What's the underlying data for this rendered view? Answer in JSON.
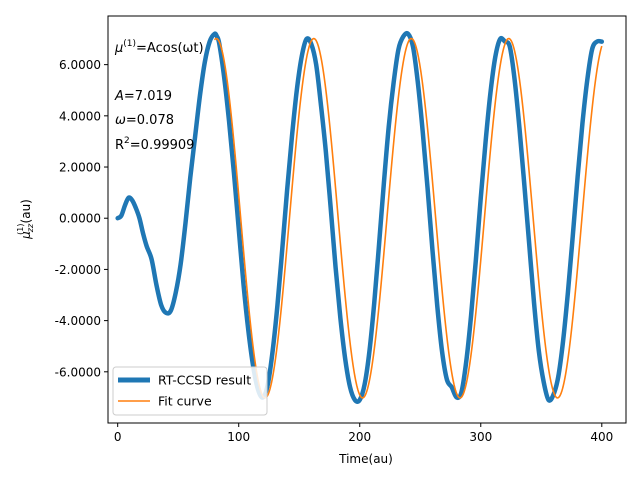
{
  "chart_data": {
    "type": "line",
    "xlabel": "Time(au)",
    "ylabel_main": "μ",
    "ylabel_sub": "zz",
    "ylabel_sup": "(1)",
    "ylabel_unit": "(au)",
    "xlim": [
      -8,
      420
    ],
    "ylim": [
      -8.0,
      7.9
    ],
    "xticks": [
      0,
      100,
      200,
      300,
      400
    ],
    "xtick_labels": [
      "0",
      "100",
      "200",
      "300",
      "400"
    ],
    "yticks": [
      -6,
      -4,
      -2,
      0,
      2,
      4,
      6
    ],
    "ytick_labels": [
      "-6.0000",
      "-4.0000",
      "-2.0000",
      "0.0000",
      "2.0000",
      "4.0000",
      "6.0000"
    ],
    "annotations": {
      "formula_prefix": "μ",
      "formula_sup": "(1)",
      "formula_body": "=Acos(ωt)",
      "amp_label": "A",
      "amp_value": "=7.019",
      "omega_label": "ω",
      "omega_value": "=0.078",
      "r2_label": "R",
      "r2_sup": "2",
      "r2_value": "=0.99909"
    },
    "legend_placement": "lower-left",
    "series": [
      {
        "name": "RT-CCSD result",
        "color": "#1f77b4",
        "x": [
          0,
          3,
          6,
          9,
          12,
          15,
          18,
          21,
          24,
          28,
          32,
          36,
          40,
          44,
          48,
          52,
          56,
          60,
          64,
          68,
          72,
          76,
          80,
          82,
          84,
          88,
          92,
          96,
          100,
          104,
          108,
          112,
          116,
          120,
          124,
          128,
          132,
          136,
          140,
          144,
          148,
          152,
          156,
          160,
          164,
          168,
          172,
          176,
          180,
          184,
          188,
          192,
          196,
          200,
          204,
          208,
          212,
          216,
          220,
          224,
          228,
          232,
          236,
          240,
          244,
          248,
          252,
          256,
          260,
          264,
          268,
          272,
          276,
          280,
          284,
          288,
          292,
          296,
          300,
          304,
          308,
          312,
          316,
          320,
          324,
          328,
          332,
          336,
          340,
          344,
          348,
          352,
          356,
          360,
          364,
          368,
          372,
          376,
          380,
          384,
          388,
          392,
          396,
          400
        ],
        "y": [
          0.0,
          0.1,
          0.5,
          0.8,
          0.7,
          0.4,
          0.0,
          -0.6,
          -1.1,
          -1.6,
          -2.6,
          -3.4,
          -3.7,
          -3.6,
          -2.9,
          -1.8,
          -0.2,
          1.6,
          3.2,
          4.8,
          6.1,
          6.9,
          7.2,
          7.1,
          6.8,
          5.5,
          3.8,
          1.8,
          -0.4,
          -2.6,
          -4.4,
          -5.8,
          -6.7,
          -7.0,
          -6.5,
          -5.2,
          -3.4,
          -1.2,
          1.1,
          3.2,
          5.0,
          6.3,
          7.0,
          6.8,
          6.0,
          4.4,
          2.6,
          0.4,
          -1.9,
          -3.9,
          -5.5,
          -6.6,
          -7.1,
          -7.1,
          -6.5,
          -5.2,
          -3.3,
          -1.0,
          1.4,
          3.6,
          5.3,
          6.6,
          7.1,
          7.2,
          6.7,
          5.3,
          3.4,
          1.2,
          -1.2,
          -3.4,
          -5.2,
          -6.3,
          -6.6,
          -7.0,
          -6.8,
          -5.6,
          -3.8,
          -1.6,
          0.8,
          3.0,
          4.9,
          6.3,
          7.0,
          6.9,
          6.7,
          5.4,
          3.5,
          1.3,
          -1.0,
          -3.3,
          -5.2,
          -6.4,
          -7.1,
          -6.9,
          -6.2,
          -4.8,
          -2.9,
          -0.7,
          1.6,
          3.7,
          5.4,
          6.6,
          6.9,
          6.9
        ]
      },
      {
        "name": "Fit curve",
        "color": "#ff7f0e",
        "func": "A*cos(omega*(t-phase))",
        "amplitude": 7.019,
        "omega": 0.078,
        "phase": 81.5,
        "x_range": [
          80,
          400
        ]
      }
    ]
  }
}
